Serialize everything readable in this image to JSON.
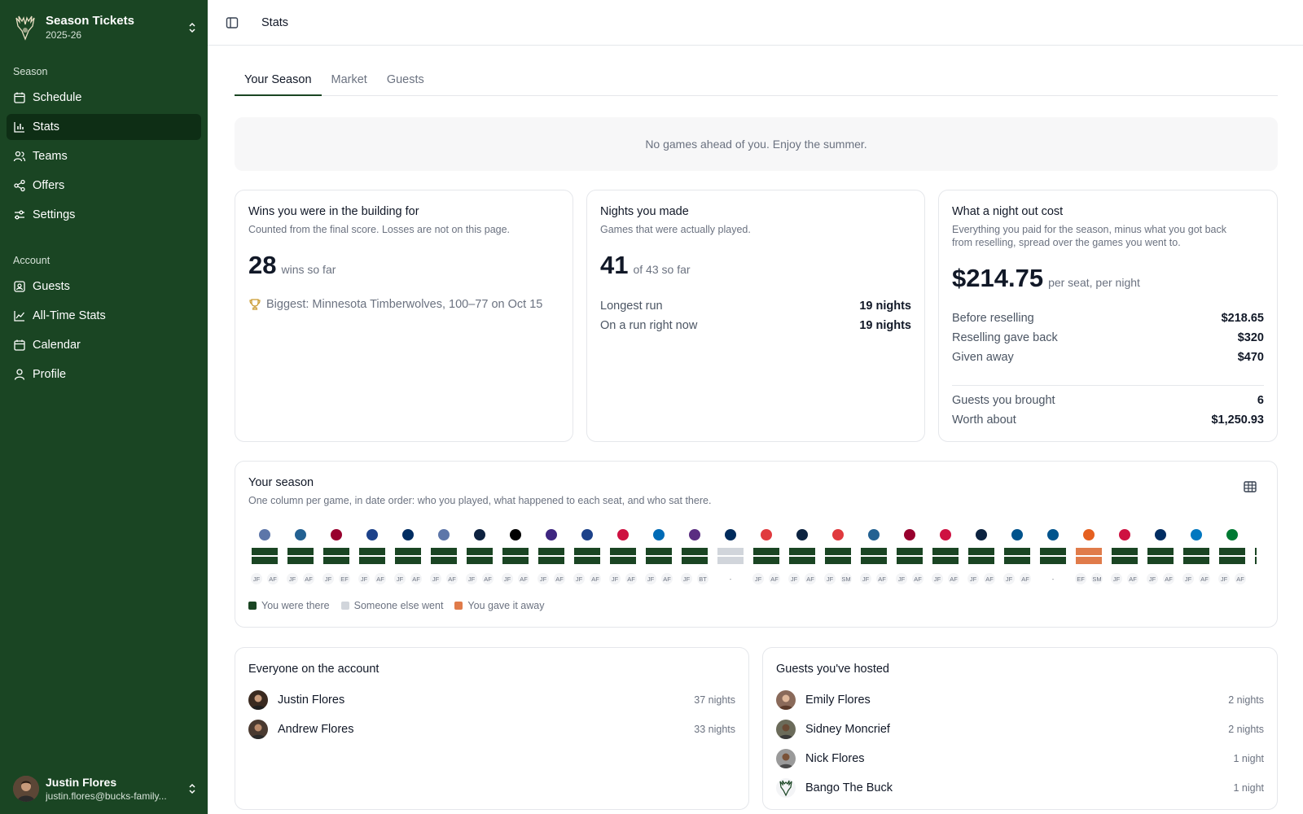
{
  "brand": {
    "title": "Season Tickets",
    "subtitle": "2025-26"
  },
  "nav": {
    "season_label": "Season",
    "season_items": [
      {
        "label": "Schedule",
        "icon": "calendar-grid-icon"
      },
      {
        "label": "Stats",
        "icon": "bar-chart-icon",
        "active": true
      },
      {
        "label": "Teams",
        "icon": "users-icon"
      },
      {
        "label": "Offers",
        "icon": "share-icon"
      },
      {
        "label": "Settings",
        "icon": "sliders-icon"
      }
    ],
    "account_label": "Account",
    "account_items": [
      {
        "label": "Guests",
        "icon": "contact-icon"
      },
      {
        "label": "All-Time Stats",
        "icon": "line-chart-icon"
      },
      {
        "label": "Calendar",
        "icon": "calendar-icon"
      },
      {
        "label": "Profile",
        "icon": "user-icon"
      }
    ]
  },
  "user": {
    "name": "Justin Flores",
    "email": "justin.flores@bucks-family..."
  },
  "header": {
    "crumb": "Stats"
  },
  "tabs": [
    {
      "label": "Your Season",
      "active": true
    },
    {
      "label": "Market"
    },
    {
      "label": "Guests"
    }
  ],
  "notice": "No games ahead of you. Enjoy the summer.",
  "wins": {
    "title": "Wins you were in the building for",
    "subtitle": "Counted from the final score. Losses are not on this page.",
    "value": "28",
    "unit": "wins so far",
    "biggest": "Biggest: Minnesota Timberwolves, 100–77 on Oct 15"
  },
  "nights": {
    "title": "Nights you made",
    "subtitle": "Games that were actually played.",
    "value": "41",
    "unit": "of 43 so far",
    "rows": [
      {
        "k": "Longest run",
        "v": "19 nights"
      },
      {
        "k": "On a run right now",
        "v": "19 nights"
      }
    ]
  },
  "cost": {
    "title": "What a night out cost",
    "subtitle_1": "Everything you paid for the season, minus what you got back",
    "subtitle_2": "from reselling, spread over the games you went to.",
    "value": "$214.75",
    "unit": "per seat, per night",
    "rows": [
      {
        "k": "Before reselling",
        "v": "$218.65"
      },
      {
        "k": "Reselling gave back",
        "v": "$320"
      },
      {
        "k": "Given away",
        "v": "$470"
      }
    ],
    "rows2": [
      {
        "k": "Guests you brought",
        "v": "6"
      },
      {
        "k": "Worth about",
        "v": "$1,250.93"
      }
    ]
  },
  "season": {
    "title": "Your season",
    "subtitle": "One column per game, in date order: who you played, what happened to each seat, and who sat there.",
    "colors": {
      "there": "#1a4523",
      "someone": "#d1d5db",
      "gave": "#e07b4a"
    },
    "legend": [
      {
        "label": "You were there",
        "color": "#1a4523"
      },
      {
        "label": "Someone else went",
        "color": "#d1d5db"
      },
      {
        "label": "You gave it away",
        "color": "#e07b4a"
      }
    ],
    "games": [
      {
        "icon": "grizzlies-logo-icon",
        "color": "#5d76a9",
        "status": "there",
        "seats": [
          "JF",
          "AF"
        ]
      },
      {
        "icon": "timberwolves-logo-icon",
        "color": "#236192",
        "status": "there",
        "seats": [
          "JF",
          "AF"
        ]
      },
      {
        "icon": "heat-logo-icon",
        "color": "#98002e",
        "status": "there",
        "seats": [
          "JF",
          "EF"
        ]
      },
      {
        "icon": "wizards-logo-icon",
        "color": "#1d428a",
        "status": "there",
        "seats": [
          "JF",
          "AF"
        ]
      },
      {
        "icon": "pacers-logo-icon",
        "color": "#002d62",
        "status": "there",
        "seats": [
          "JF",
          "AF"
        ]
      },
      {
        "icon": "grizzlies-logo-icon",
        "color": "#5d76a9",
        "status": "there",
        "seats": [
          "JF",
          "AF"
        ]
      },
      {
        "icon": "nuggets-logo-icon",
        "color": "#0e2240",
        "status": "there",
        "seats": [
          "JF",
          "AF"
        ]
      },
      {
        "icon": "nets-logo-icon",
        "color": "#000000",
        "status": "there",
        "seats": [
          "JF",
          "AF"
        ]
      },
      {
        "icon": "jazz-logo-icon",
        "color": "#3e2680",
        "status": "there",
        "seats": [
          "JF",
          "AF"
        ]
      },
      {
        "icon": "wizards-logo-icon",
        "color": "#1d428a",
        "status": "there",
        "seats": [
          "JF",
          "AF"
        ]
      },
      {
        "icon": "bulls-logo-icon",
        "color": "#ce1141",
        "status": "there",
        "seats": [
          "JF",
          "AF"
        ]
      },
      {
        "icon": "76ers-logo-icon",
        "color": "#006bb6",
        "status": "there",
        "seats": [
          "JF",
          "AF"
        ]
      },
      {
        "icon": "kings-logo-icon",
        "color": "#5a2d81",
        "status": "there",
        "seats": [
          "JF",
          "BT"
        ]
      },
      {
        "icon": "wizards-logo-icon",
        "color": "#002b5c",
        "status": "someone",
        "seats": [
          "-"
        ]
      },
      {
        "icon": "hawks-logo-icon",
        "color": "#e03a3e",
        "status": "there",
        "seats": [
          "JF",
          "AF"
        ]
      },
      {
        "icon": "pelicans-logo-icon",
        "color": "#0c2340",
        "status": "there",
        "seats": [
          "JF",
          "AF"
        ]
      },
      {
        "icon": "trail-blazers-logo-icon",
        "color": "#e03a3e",
        "status": "there",
        "seats": [
          "JF",
          "SM"
        ]
      },
      {
        "icon": "timberwolves-logo-icon",
        "color": "#236192",
        "status": "there",
        "seats": [
          "JF",
          "AF"
        ]
      },
      {
        "icon": "heat-logo-icon",
        "color": "#98002e",
        "status": "there",
        "seats": [
          "JF",
          "AF"
        ]
      },
      {
        "icon": "raptors-logo-icon",
        "color": "#ce1141",
        "status": "there",
        "seats": [
          "JF",
          "AF"
        ]
      },
      {
        "icon": "pelicans-logo-icon",
        "color": "#0c2340",
        "status": "there",
        "seats": [
          "JF",
          "AF"
        ]
      },
      {
        "icon": "mavericks-logo-icon",
        "color": "#00538c",
        "status": "there",
        "seats": [
          "JF",
          "AF"
        ]
      },
      {
        "icon": "mavericks-logo-icon",
        "color": "#00538c",
        "status": "there",
        "seats": [
          "-"
        ]
      },
      {
        "icon": "suns-logo-icon",
        "color": "#e56020",
        "status": "gave",
        "seats": [
          "EF",
          "SM"
        ]
      },
      {
        "icon": "rockets-logo-icon",
        "color": "#ce1141",
        "status": "there",
        "seats": [
          "JF",
          "AF"
        ]
      },
      {
        "icon": "pacers-logo-icon",
        "color": "#002d62",
        "status": "there",
        "seats": [
          "JF",
          "AF"
        ]
      },
      {
        "icon": "magic-logo-icon",
        "color": "#0077c0",
        "status": "there",
        "seats": [
          "JF",
          "AF"
        ]
      },
      {
        "icon": "celtics-logo-icon",
        "color": "#007a33",
        "status": "there",
        "seats": [
          "JF",
          "AF"
        ]
      },
      {
        "icon": "hawks-logo-icon",
        "color": "#e03a3e",
        "status": "there",
        "seats": [
          "-"
        ]
      }
    ]
  },
  "everyone": {
    "title": "Everyone on the account",
    "people": [
      {
        "name": "Justin Flores",
        "nights": "37 nights"
      },
      {
        "name": "Andrew Flores",
        "nights": "33 nights"
      }
    ]
  },
  "guests": {
    "title": "Guests you've hosted",
    "people": [
      {
        "name": "Emily Flores",
        "nights": "2 nights"
      },
      {
        "name": "Sidney Moncrief",
        "nights": "2 nights"
      },
      {
        "name": "Nick Flores",
        "nights": "1 night"
      },
      {
        "name": "Bango The Buck",
        "nights": "1 night"
      }
    ]
  }
}
